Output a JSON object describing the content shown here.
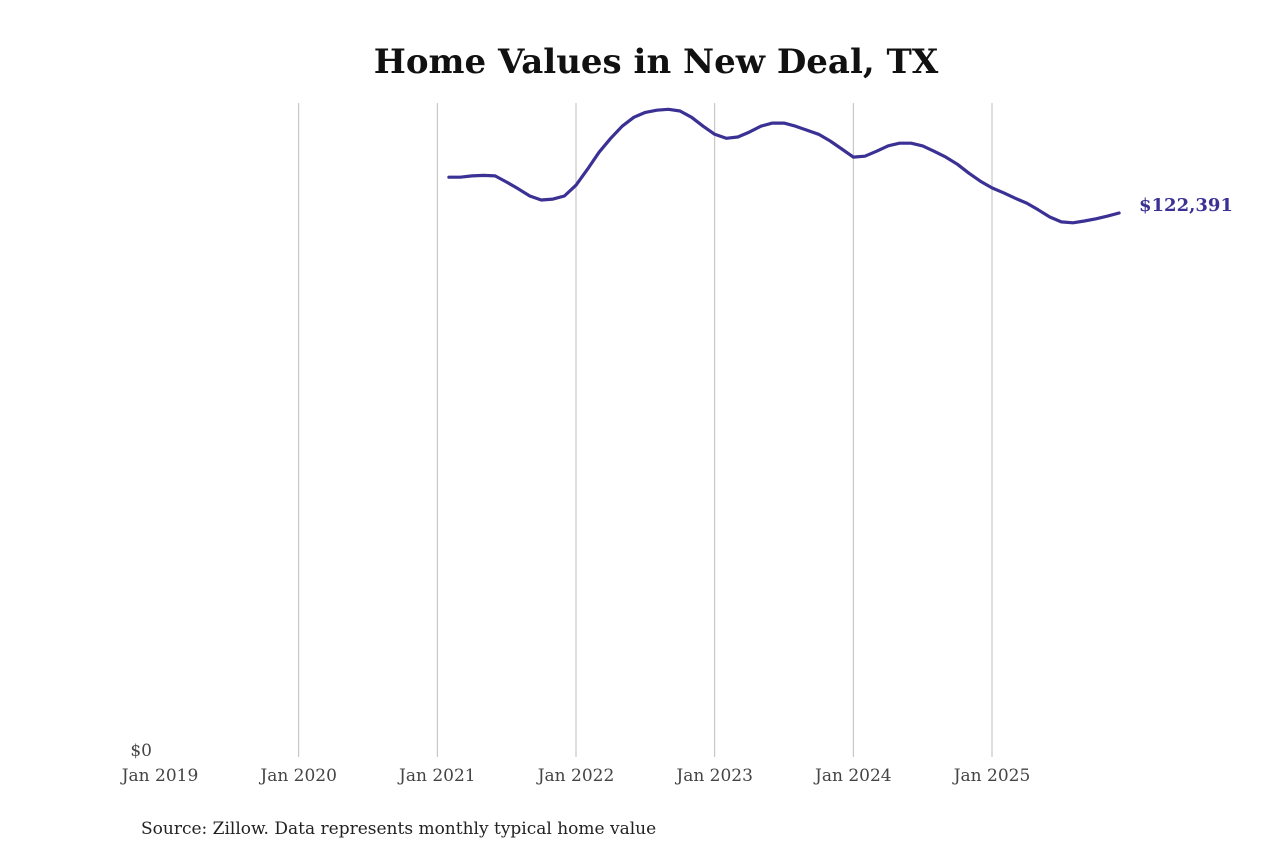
{
  "chart_data": {
    "type": "line",
    "title": "Home Values in New Deal, TX",
    "source": "Source: Zillow. Data represents monthly typical home value",
    "xlabel": "",
    "ylabel": "",
    "x_ticks": [
      "Jan 2019",
      "Jan 2020",
      "Jan 2021",
      "Jan 2022",
      "Jan 2023",
      "Jan 2024",
      "Jan 2025"
    ],
    "y_ticks": [
      "$0"
    ],
    "xlim": [
      "2019-01",
      "2025-12"
    ],
    "ylim": [
      0,
      147000
    ],
    "grid": "vertical",
    "line_color": "#3b3194",
    "end_label": "$122,391",
    "x": [
      "2021-02",
      "2021-03",
      "2021-04",
      "2021-05",
      "2021-06",
      "2021-07",
      "2021-08",
      "2021-09",
      "2021-10",
      "2021-11",
      "2021-12",
      "2022-01",
      "2022-02",
      "2022-03",
      "2022-04",
      "2022-05",
      "2022-06",
      "2022-07",
      "2022-08",
      "2022-09",
      "2022-10",
      "2022-11",
      "2022-12",
      "2023-01",
      "2023-02",
      "2023-03",
      "2023-04",
      "2023-05",
      "2023-06",
      "2023-07",
      "2023-08",
      "2023-09",
      "2023-10",
      "2023-11",
      "2023-12",
      "2024-01",
      "2024-02",
      "2024-03",
      "2024-04",
      "2024-05",
      "2024-06",
      "2024-07",
      "2024-08",
      "2024-09",
      "2024-10",
      "2024-11",
      "2024-12",
      "2025-01",
      "2025-02",
      "2025-03",
      "2025-04",
      "2025-05",
      "2025-06",
      "2025-07",
      "2025-08",
      "2025-09",
      "2025-10",
      "2025-11",
      "2025-12"
    ],
    "values": [
      130400,
      130400,
      130700,
      130800,
      130700,
      129300,
      127800,
      126200,
      125300,
      125500,
      126200,
      128600,
      132200,
      136000,
      139100,
      141800,
      143800,
      144900,
      145400,
      145600,
      145200,
      143800,
      141800,
      140000,
      139100,
      139400,
      140500,
      141800,
      142500,
      142500,
      141800,
      140900,
      140000,
      138500,
      136700,
      134900,
      135100,
      136200,
      137400,
      138000,
      138000,
      137400,
      136200,
      134900,
      133300,
      131300,
      129500,
      128000,
      126900,
      125700,
      124600,
      123100,
      121500,
      120400,
      120200,
      120600,
      121100,
      121700,
      122391
    ]
  }
}
